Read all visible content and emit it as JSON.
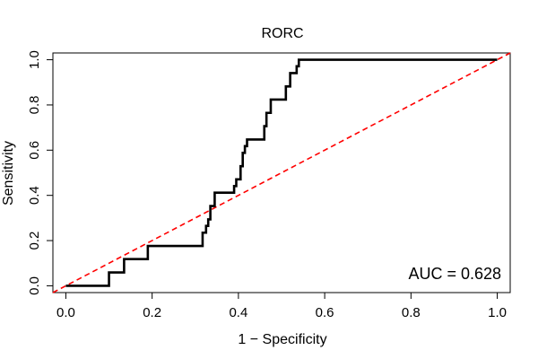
{
  "chart_data": {
    "type": "line",
    "title": "RORC",
    "xlabel": "1 − Specificity",
    "ylabel": "Sensitivity",
    "xlim": [
      -0.03,
      1.03
    ],
    "ylim": [
      -0.03,
      1.03
    ],
    "x_ticks": [
      0.0,
      0.2,
      0.4,
      0.6,
      0.8,
      1.0
    ],
    "x_tick_labels": [
      "0.0",
      "0.2",
      "0.4",
      "0.6",
      "0.8",
      "1.0"
    ],
    "y_ticks": [
      0.0,
      0.2,
      0.4,
      0.6,
      0.8,
      1.0
    ],
    "y_tick_labels": [
      "0.0",
      "0.2",
      "0.4",
      "0.6",
      "0.8",
      "1.0"
    ],
    "grid": false,
    "annotation": "AUC = 0.628",
    "series": [
      {
        "color": "#000000",
        "style": "solid-step",
        "x": [
          0.0,
          0.1,
          0.1,
          0.135,
          0.135,
          0.19,
          0.19,
          0.317,
          0.317,
          0.325,
          0.325,
          0.33,
          0.33,
          0.335,
          0.335,
          0.345,
          0.345,
          0.39,
          0.39,
          0.395,
          0.395,
          0.405,
          0.405,
          0.41,
          0.41,
          0.415,
          0.415,
          0.42,
          0.42,
          0.46,
          0.46,
          0.465,
          0.465,
          0.475,
          0.475,
          0.51,
          0.51,
          0.52,
          0.52,
          0.535,
          0.535,
          0.54,
          0.54,
          1.0
        ],
        "y": [
          0.0,
          0.0,
          0.059,
          0.059,
          0.118,
          0.118,
          0.176,
          0.176,
          0.235,
          0.235,
          0.265,
          0.265,
          0.294,
          0.294,
          0.353,
          0.353,
          0.412,
          0.412,
          0.441,
          0.441,
          0.471,
          0.471,
          0.529,
          0.529,
          0.588,
          0.588,
          0.618,
          0.618,
          0.647,
          0.647,
          0.706,
          0.706,
          0.765,
          0.765,
          0.824,
          0.824,
          0.882,
          0.882,
          0.941,
          0.941,
          0.971,
          0.971,
          1.0,
          1.0
        ]
      },
      {
        "color": "#ff0000",
        "style": "dashed",
        "x": [
          -0.03,
          1.03
        ],
        "y": [
          -0.03,
          1.03
        ]
      }
    ]
  }
}
